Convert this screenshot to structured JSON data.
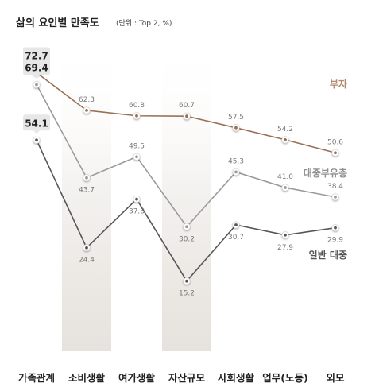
{
  "chart_data": {
    "type": "line",
    "title": "삶의 요인별 만족도",
    "unit": "(단위 : Top 2, %)",
    "categories": [
      "가족관계",
      "소비생활",
      "여가생활",
      "자산규모",
      "사회생활",
      "업무(노동)",
      "외모"
    ],
    "highlighted_categories": [
      1,
      3
    ],
    "series": [
      {
        "name": "부자",
        "values": [
          72.7,
          62.3,
          60.8,
          60.7,
          57.5,
          54.2,
          50.6
        ],
        "color": "#9a6f55",
        "label_color": "#b5876c"
      },
      {
        "name": "대중부유층",
        "values": [
          69.4,
          43.7,
          49.5,
          30.2,
          45.3,
          41.0,
          38.4
        ],
        "color": "#9b9b9b",
        "label_color": "#8f8f8f"
      },
      {
        "name": "일반 대중",
        "values": [
          54.1,
          24.4,
          37.8,
          15.2,
          30.7,
          27.9,
          29.9
        ],
        "color": "#555555",
        "label_color": "#555555"
      }
    ],
    "value_labels": [
      [
        "72.7",
        "62.3",
        "60.8",
        "60.7",
        "57.5",
        "54.2",
        "50.6"
      ],
      [
        "69.4",
        "43.7",
        "49.5",
        "30.2",
        "45.3",
        "41.0",
        "38.4"
      ],
      [
        "54.1",
        "24.4",
        "37.8",
        "15.2",
        "30.7",
        "27.9",
        "29.9"
      ]
    ],
    "grid": false,
    "legend": "none"
  }
}
